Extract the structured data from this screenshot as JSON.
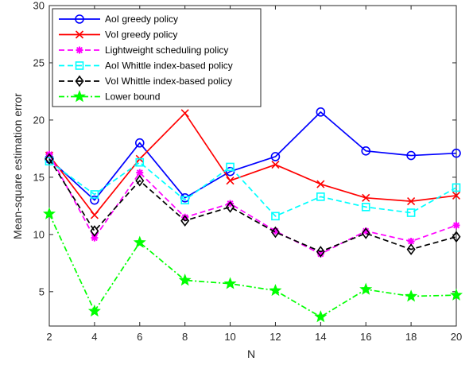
{
  "chart_data": {
    "type": "line",
    "xlabel": "N",
    "ylabel": "Mean-square estimation error",
    "xlim": [
      2,
      20
    ],
    "ylim": [
      2,
      30
    ],
    "xticks": [
      2,
      4,
      6,
      8,
      10,
      12,
      14,
      16,
      18,
      20
    ],
    "yticks": [
      5,
      10,
      15,
      20,
      25,
      30
    ],
    "grid": false,
    "legend_position": "top-left",
    "x": [
      2,
      4,
      6,
      8,
      10,
      12,
      14,
      16,
      18,
      20
    ],
    "series": [
      {
        "name": "AoI greedy policy",
        "color": "#0000ff",
        "dash": "solid",
        "marker": "circle",
        "values": [
          16.6,
          13.0,
          18.0,
          13.2,
          15.5,
          16.8,
          20.7,
          17.3,
          16.9,
          17.1
        ]
      },
      {
        "name": "VoI greedy policy",
        "color": "#ff0000",
        "dash": "solid",
        "marker": "x",
        "values": [
          16.9,
          11.7,
          16.6,
          20.6,
          14.7,
          16.1,
          14.4,
          13.2,
          12.9,
          13.4
        ]
      },
      {
        "name": "Lightweight scheduling policy",
        "color": "#ff00ff",
        "dash": "dashed",
        "marker": "asterisk",
        "values": [
          17.0,
          9.7,
          15.4,
          11.5,
          12.7,
          10.3,
          8.3,
          10.3,
          9.4,
          10.8
        ]
      },
      {
        "name": "AoI Whittle index-based policy",
        "color": "#00ffff",
        "dash": "dashed",
        "marker": "square",
        "values": [
          16.4,
          13.5,
          16.3,
          13.0,
          15.9,
          11.6,
          13.3,
          12.4,
          11.9,
          14.1
        ]
      },
      {
        "name": "VoI Whittle index-based policy",
        "color": "#000000",
        "dash": "dashed",
        "marker": "diamond",
        "values": [
          16.6,
          10.3,
          14.7,
          11.2,
          12.4,
          10.2,
          8.5,
          10.1,
          8.7,
          9.8
        ]
      },
      {
        "name": "Lower bound",
        "color": "#00ff00",
        "dash": "dashdot",
        "marker": "star",
        "values": [
          11.8,
          3.3,
          9.3,
          6.0,
          5.7,
          5.1,
          2.8,
          5.2,
          4.6,
          4.7
        ]
      }
    ]
  }
}
